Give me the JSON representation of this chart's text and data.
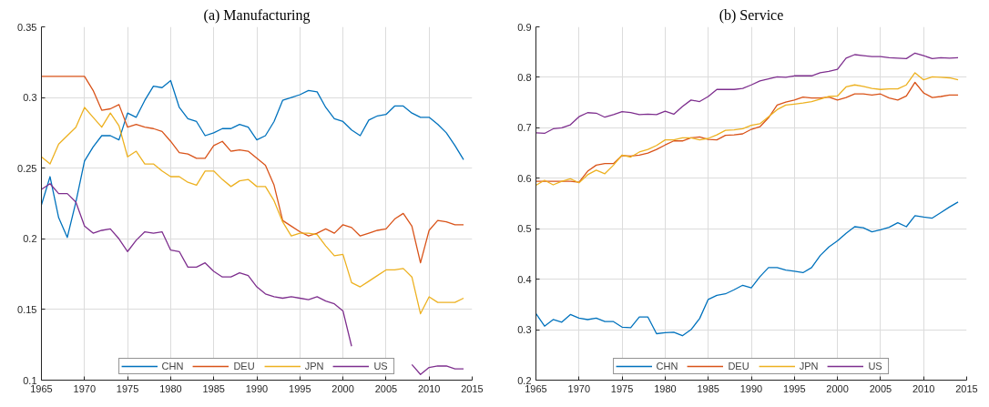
{
  "chart_data": [
    {
      "type": "line",
      "title": "(a) Manufacturing",
      "x": [
        1965,
        1966,
        1967,
        1968,
        1969,
        1970,
        1971,
        1972,
        1973,
        1974,
        1975,
        1976,
        1977,
        1978,
        1979,
        1980,
        1981,
        1982,
        1983,
        1984,
        1985,
        1986,
        1987,
        1988,
        1989,
        1990,
        1991,
        1992,
        1993,
        1994,
        1995,
        1996,
        1997,
        1998,
        1999,
        2000,
        2001,
        2002,
        2003,
        2004,
        2005,
        2006,
        2007,
        2008,
        2009,
        2010,
        2011,
        2012,
        2013,
        2014
      ],
      "series": [
        {
          "name": "CHN",
          "color": "#0072bd",
          "values": [
            0.224,
            0.244,
            0.215,
            0.201,
            0.226,
            0.255,
            0.265,
            0.273,
            0.273,
            0.27,
            0.289,
            0.286,
            0.298,
            0.308,
            0.307,
            0.312,
            0.293,
            0.285,
            0.283,
            0.273,
            0.275,
            0.278,
            0.278,
            0.281,
            0.279,
            0.27,
            0.273,
            0.283,
            0.298,
            0.3,
            0.302,
            0.305,
            0.304,
            0.293,
            0.285,
            0.283,
            0.277,
            0.273,
            0.284,
            0.287,
            0.288,
            0.294,
            0.294,
            0.289,
            0.286,
            0.286,
            0.281,
            0.275,
            0.266,
            0.256
          ]
        },
        {
          "name": "DEU",
          "color": "#d95319",
          "values": [
            0.315,
            0.315,
            0.315,
            0.315,
            0.315,
            0.315,
            0.305,
            0.291,
            0.292,
            0.295,
            0.279,
            0.281,
            0.279,
            0.278,
            0.276,
            0.269,
            0.261,
            0.26,
            0.257,
            0.257,
            0.266,
            0.269,
            0.262,
            0.263,
            0.262,
            0.257,
            0.252,
            0.238,
            0.213,
            0.209,
            0.205,
            0.202,
            0.204,
            0.207,
            0.204,
            0.21,
            0.208,
            0.202,
            0.204,
            0.206,
            0.207,
            0.214,
            0.218,
            0.209,
            0.183,
            0.206,
            0.213,
            0.212,
            0.21,
            0.21
          ]
        },
        {
          "name": "JPN",
          "color": "#edb120",
          "values": [
            0.258,
            0.253,
            0.267,
            0.273,
            0.279,
            0.293,
            0.286,
            0.279,
            0.289,
            0.28,
            0.258,
            0.262,
            0.253,
            0.253,
            0.248,
            0.244,
            0.244,
            0.24,
            0.238,
            0.248,
            0.248,
            0.242,
            0.237,
            0.241,
            0.242,
            0.237,
            0.237,
            0.227,
            0.212,
            0.202,
            0.204,
            0.204,
            0.203,
            0.195,
            0.188,
            0.189,
            0.169,
            0.166,
            0.17,
            0.174,
            0.178,
            0.178,
            0.179,
            0.173,
            0.147,
            0.159,
            0.155,
            0.155,
            0.155,
            0.158
          ]
        },
        {
          "name": "US",
          "color": "#7e2f8e",
          "values": [
            0.235,
            0.239,
            0.232,
            0.232,
            0.226,
            0.209,
            0.204,
            0.206,
            0.207,
            0.2,
            0.191,
            0.199,
            0.205,
            0.204,
            0.205,
            0.192,
            0.191,
            0.18,
            0.18,
            0.183,
            0.177,
            0.173,
            0.173,
            0.176,
            0.174,
            0.166,
            0.161,
            0.159,
            0.158,
            0.159,
            0.158,
            0.157,
            0.159,
            0.156,
            0.154,
            0.149,
            0.124,
            null,
            null,
            null,
            null,
            null,
            null,
            0.111,
            0.104,
            0.109,
            0.11,
            0.11,
            0.108,
            0.108
          ]
        }
      ],
      "xlim": [
        1965,
        2015
      ],
      "xticks": [
        1965,
        1970,
        1975,
        1980,
        1985,
        1990,
        1995,
        2000,
        2005,
        2010,
        2015
      ],
      "ylim": [
        0.1,
        0.35
      ],
      "yticks": [
        0.1,
        0.15,
        0.2,
        0.25,
        0.3,
        0.35
      ],
      "grid": true,
      "legend": "bottom"
    },
    {
      "type": "line",
      "title": "(b) Service",
      "x": [
        1965,
        1966,
        1967,
        1968,
        1969,
        1970,
        1971,
        1972,
        1973,
        1974,
        1975,
        1976,
        1977,
        1978,
        1979,
        1980,
        1981,
        1982,
        1983,
        1984,
        1985,
        1986,
        1987,
        1988,
        1989,
        1990,
        1991,
        1992,
        1993,
        1994,
        1995,
        1996,
        1997,
        1998,
        1999,
        2000,
        2001,
        2002,
        2003,
        2004,
        2005,
        2006,
        2007,
        2008,
        2009,
        2010,
        2011,
        2012,
        2013,
        2014
      ],
      "series": [
        {
          "name": "CHN",
          "color": "#0072bd",
          "values": [
            0.332,
            0.307,
            0.32,
            0.315,
            0.33,
            0.323,
            0.32,
            0.323,
            0.316,
            0.316,
            0.305,
            0.304,
            0.325,
            0.325,
            0.292,
            0.294,
            0.295,
            0.288,
            0.3,
            0.322,
            0.36,
            0.368,
            0.371,
            0.379,
            0.388,
            0.383,
            0.405,
            0.423,
            0.423,
            0.418,
            0.416,
            0.413,
            0.423,
            0.447,
            0.464,
            0.476,
            0.491,
            0.504,
            0.502,
            0.494,
            0.498,
            0.503,
            0.512,
            0.504,
            0.526,
            0.523,
            0.521,
            0.532,
            0.543,
            0.553
          ]
        },
        {
          "name": "DEU",
          "color": "#d95319",
          "values": [
            0.594,
            0.594,
            0.594,
            0.594,
            0.594,
            0.592,
            0.614,
            0.626,
            0.629,
            0.629,
            0.645,
            0.644,
            0.646,
            0.65,
            0.657,
            0.666,
            0.674,
            0.674,
            0.68,
            0.682,
            0.677,
            0.676,
            0.685,
            0.686,
            0.688,
            0.697,
            0.702,
            0.72,
            0.745,
            0.751,
            0.755,
            0.761,
            0.759,
            0.759,
            0.761,
            0.755,
            0.76,
            0.767,
            0.767,
            0.765,
            0.767,
            0.759,
            0.755,
            0.763,
            0.79,
            0.769,
            0.76,
            0.762,
            0.765,
            0.765
          ]
        },
        {
          "name": "JPN",
          "color": "#edb120",
          "values": [
            0.586,
            0.596,
            0.587,
            0.594,
            0.599,
            0.591,
            0.607,
            0.616,
            0.609,
            0.626,
            0.646,
            0.642,
            0.652,
            0.657,
            0.665,
            0.676,
            0.676,
            0.68,
            0.68,
            0.676,
            0.679,
            0.686,
            0.695,
            0.696,
            0.698,
            0.705,
            0.708,
            0.722,
            0.736,
            0.745,
            0.747,
            0.749,
            0.752,
            0.757,
            0.762,
            0.763,
            0.781,
            0.785,
            0.782,
            0.778,
            0.776,
            0.777,
            0.777,
            0.785,
            0.809,
            0.795,
            0.801,
            0.8,
            0.799,
            0.795
          ]
        },
        {
          "name": "US",
          "color": "#7e2f8e",
          "values": [
            0.69,
            0.689,
            0.698,
            0.7,
            0.706,
            0.722,
            0.73,
            0.729,
            0.721,
            0.726,
            0.732,
            0.73,
            0.726,
            0.727,
            0.726,
            0.733,
            0.727,
            0.742,
            0.755,
            0.752,
            0.762,
            0.776,
            0.776,
            0.776,
            0.778,
            0.785,
            0.793,
            0.797,
            0.801,
            0.8,
            0.803,
            0.803,
            0.803,
            0.809,
            0.812,
            0.816,
            0.838,
            0.845,
            0.843,
            0.841,
            0.841,
            0.839,
            0.838,
            0.837,
            0.848,
            0.843,
            0.837,
            0.839,
            0.838,
            0.839
          ]
        }
      ],
      "xlim": [
        1965,
        2015
      ],
      "xticks": [
        1965,
        1970,
        1975,
        1980,
        1985,
        1990,
        1995,
        2000,
        2005,
        2010,
        2015
      ],
      "ylim": [
        0.2,
        0.9
      ],
      "yticks": [
        0.2,
        0.3,
        0.4,
        0.5,
        0.6,
        0.7,
        0.8,
        0.9
      ],
      "grid": true,
      "legend": "bottom"
    }
  ]
}
